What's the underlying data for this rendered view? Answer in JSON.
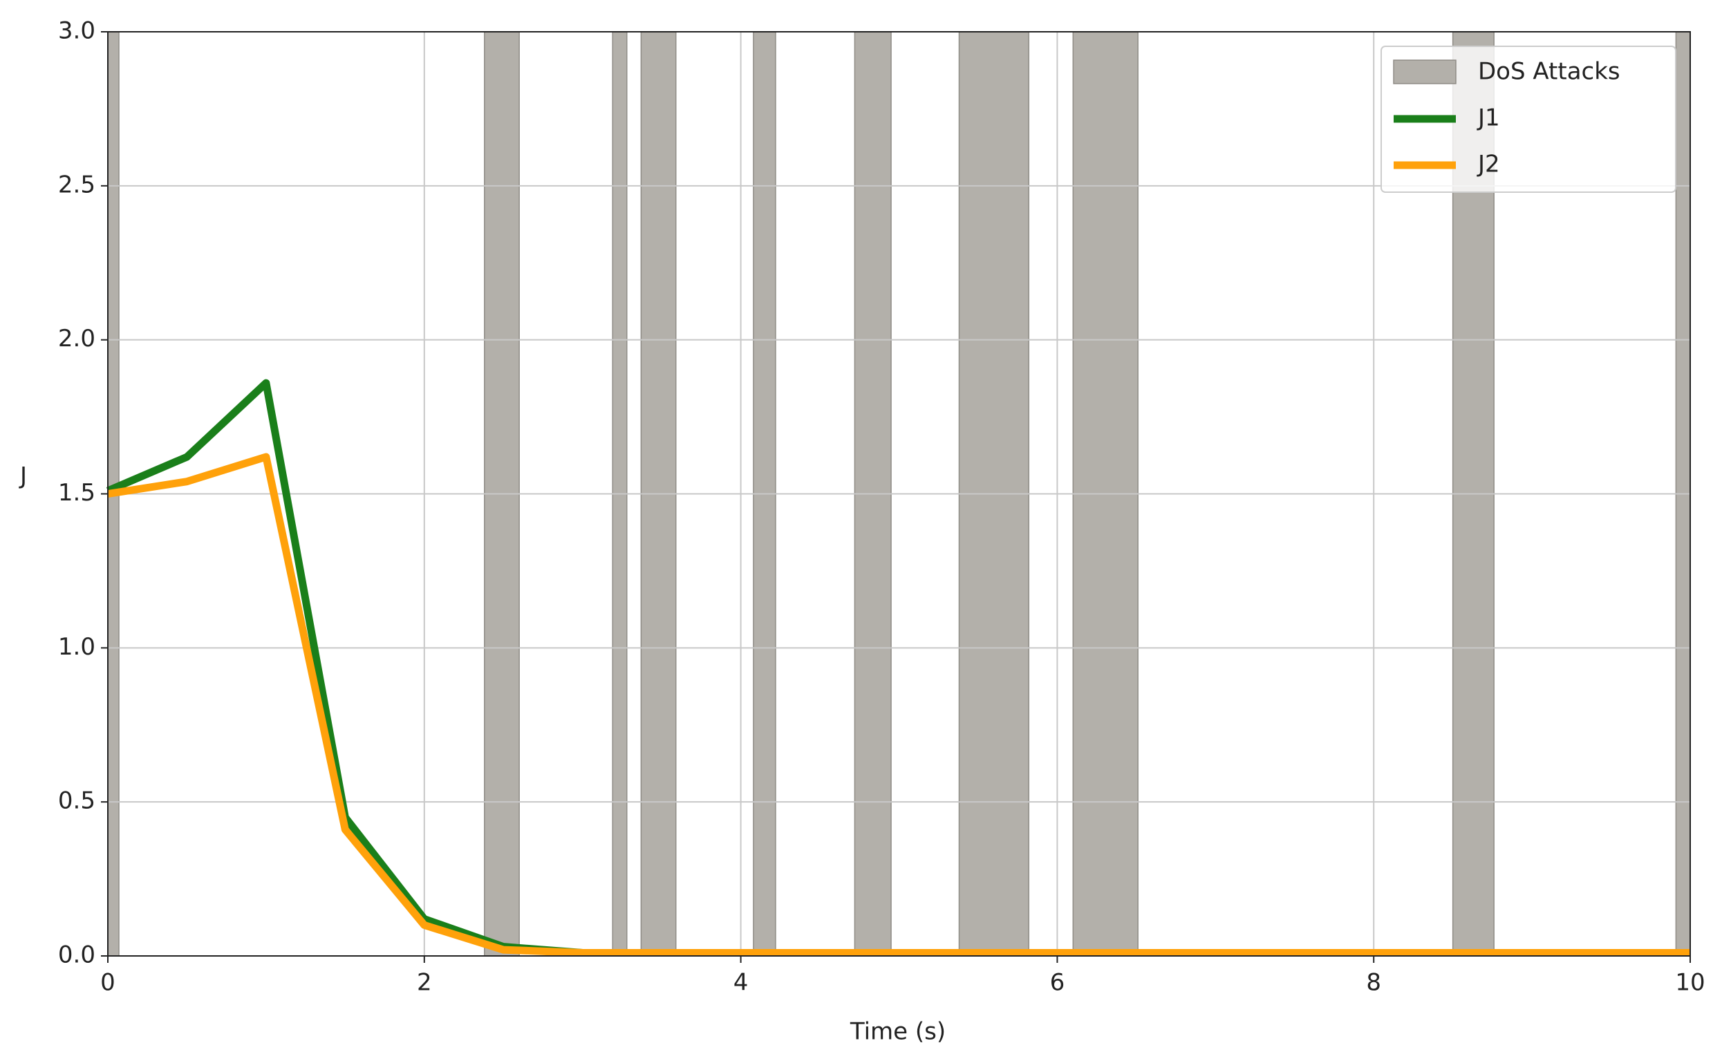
{
  "chart_data": {
    "type": "line",
    "x_label": "Time (s)",
    "y_label": "J",
    "x": [
      0,
      0.5,
      1,
      1.5,
      2,
      2.5,
      3,
      3.5,
      4,
      4.5,
      5,
      5.5,
      6,
      6.5,
      7,
      7.5,
      8,
      8.5,
      9,
      9.5,
      10
    ],
    "series": [
      {
        "name": "J1",
        "color": "#1a7f1a",
        "values": [
          1.51,
          1.62,
          1.86,
          0.45,
          0.12,
          0.03,
          0.01,
          0.01,
          0.01,
          0.01,
          0.01,
          0.01,
          0.01,
          0.01,
          0.01,
          0.01,
          0.01,
          0.01,
          0.01,
          0.01,
          0.01
        ]
      },
      {
        "name": "J2",
        "color": "#ffa10a",
        "values": [
          1.5,
          1.54,
          1.62,
          0.41,
          0.1,
          0.02,
          0.01,
          0.01,
          0.01,
          0.01,
          0.01,
          0.01,
          0.01,
          0.01,
          0.01,
          0.01,
          0.01,
          0.01,
          0.01,
          0.01,
          0.01
        ]
      }
    ],
    "spans": {
      "name": "DoS Attacks",
      "color": "#b3b0aa",
      "ranges": [
        [
          0,
          0.07
        ],
        [
          2.38,
          2.6
        ],
        [
          3.19,
          3.28
        ],
        [
          3.37,
          3.59
        ],
        [
          4.08,
          4.22
        ],
        [
          4.72,
          4.95
        ],
        [
          5.38,
          5.82
        ],
        [
          6.1,
          6.51
        ],
        [
          8.5,
          8.76
        ],
        [
          9.91,
          10
        ]
      ]
    },
    "xlim": [
      0,
      10
    ],
    "ylim": [
      0,
      3
    ],
    "xticks": [
      0,
      2,
      4,
      6,
      8,
      10
    ],
    "yticks": [
      {
        "value": 0,
        "label": "0.0"
      },
      {
        "value": 0.5,
        "label": "0.5"
      },
      {
        "value": 1,
        "label": "1.0"
      },
      {
        "value": 1.5,
        "label": "1.5"
      },
      {
        "value": 2,
        "label": "2.0"
      },
      {
        "value": 2.5,
        "label": "2.5"
      },
      {
        "value": 3,
        "label": "3.0"
      }
    ],
    "grid": true,
    "legend": "upper right"
  }
}
